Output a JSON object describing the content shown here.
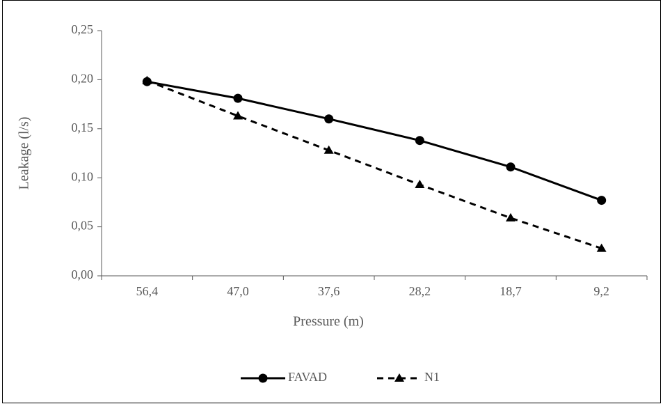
{
  "chart_data": {
    "type": "line",
    "x_label": "Pressure (m)",
    "y_label": "Leakage (l/s)",
    "categories": [
      "56,4",
      "47,0",
      "37,6",
      "28,2",
      "18,7",
      "9,2"
    ],
    "series": [
      {
        "name": "FAVAD",
        "color": "#000000",
        "style": "solid",
        "marker": "circle",
        "values": [
          0.198,
          0.181,
          0.16,
          0.138,
          0.111,
          0.077
        ]
      },
      {
        "name": "N1",
        "color": "#000000",
        "style": "dashed",
        "marker": "triangle",
        "values": [
          0.199,
          0.163,
          0.128,
          0.093,
          0.059,
          0.028
        ]
      }
    ],
    "ylim": [
      0,
      0.25
    ],
    "yticks": [
      {
        "value": 0,
        "label": "0,00"
      },
      {
        "value": 0.05,
        "label": "0,05"
      },
      {
        "value": 0.1,
        "label": "0,10"
      },
      {
        "value": 0.15,
        "label": "0,15"
      },
      {
        "value": 0.2,
        "label": "0,20"
      },
      {
        "value": 0.25,
        "label": "0,25"
      }
    ],
    "legend": "bottom"
  }
}
